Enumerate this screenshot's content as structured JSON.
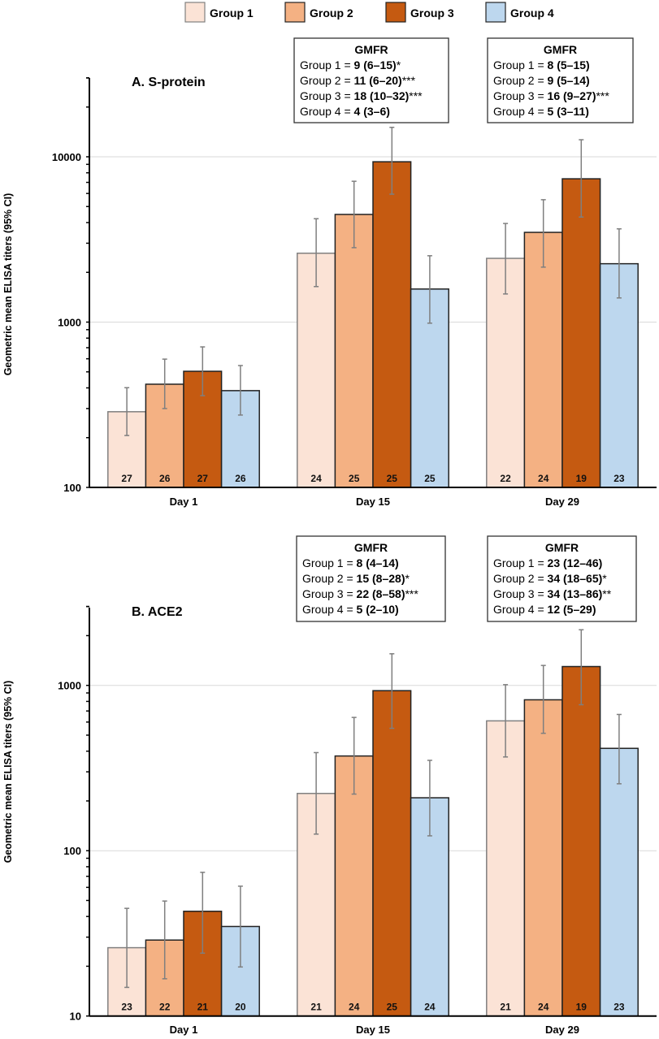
{
  "legend": [
    {
      "name": "Group 1",
      "color": "#fbe3d6",
      "stroke": "#808080"
    },
    {
      "name": "Group 2",
      "color": "#f4b183",
      "stroke": "#222222"
    },
    {
      "name": "Group 3",
      "color": "#c55a11",
      "stroke": "#222222"
    },
    {
      "name": "Group 4",
      "color": "#bdd7ee",
      "stroke": "#222222"
    }
  ],
  "chart_data": [
    {
      "type": "bar",
      "title": "A. S-protein",
      "ylabel": "Geometric mean ELISA titers (95% CI)",
      "yscale": "log",
      "ylim": [
        100,
        30000
      ],
      "yticks": [
        "100",
        "1000",
        "10000"
      ],
      "grid": true,
      "legend_position": "top",
      "categories": [
        "Day 1",
        "Day 15",
        "Day 29"
      ],
      "series": [
        {
          "name": "Group 1",
          "values": [
            287,
            2610,
            2430
          ],
          "ci_low": [
            206,
            1640,
            1480
          ],
          "ci_high": [
            401,
            4220,
            3950
          ],
          "n": [
            "27",
            "24",
            "22"
          ]
        },
        {
          "name": "Group 2",
          "values": [
            421,
            4480,
            3490
          ],
          "ci_low": [
            300,
            2820,
            2150
          ],
          "ci_high": [
            597,
            7110,
            5500
          ],
          "n": [
            "26",
            "25",
            "24"
          ]
        },
        {
          "name": "Group 3",
          "values": [
            504,
            9330,
            7360
          ],
          "ci_low": [
            359,
            5940,
            4320
          ],
          "ci_high": [
            708,
            15070,
            12680
          ],
          "n": [
            "27",
            "25",
            "19"
          ]
        },
        {
          "name": "Group 4",
          "values": [
            385,
            1585,
            2255
          ],
          "ci_low": [
            274,
            985,
            1400
          ],
          "ci_high": [
            546,
            2520,
            3665
          ],
          "n": [
            "26",
            "25",
            "23"
          ]
        }
      ],
      "annotations": [
        {
          "category": "Day 15",
          "heading": "GMFR",
          "lines": [
            {
              "label": "Group 1 = ",
              "value": "9 (6–15)",
              "sig": "*"
            },
            {
              "label": "Group 2 = ",
              "value": "11 (6–20)",
              "sig": "***"
            },
            {
              "label": "Group 3 = ",
              "value": "18 (10–32)",
              "sig": "***"
            },
            {
              "label": "Group 4 = ",
              "value": "4 (3–6)",
              "sig": ""
            }
          ]
        },
        {
          "category": "Day 29",
          "heading": "GMFR",
          "lines": [
            {
              "label": "Group 1 = ",
              "value": "8 (5–15)",
              "sig": ""
            },
            {
              "label": "Group 2 = ",
              "value": "9 (5–14)",
              "sig": ""
            },
            {
              "label": "Group 3 = ",
              "value": "16 (9–27)",
              "sig": "***"
            },
            {
              "label": "Group 4 = ",
              "value": "5 (3–11)",
              "sig": ""
            }
          ]
        }
      ]
    },
    {
      "type": "bar",
      "title": "B. ACE2",
      "ylabel": "Geometric mean ELISA titers (95% CI)",
      "yscale": "log",
      "ylim": [
        10,
        3000
      ],
      "yticks": [
        "10",
        "100",
        "1000"
      ],
      "grid": true,
      "legend_position": "top",
      "categories": [
        "Day 1",
        "Day 15",
        "Day 29"
      ],
      "series": [
        {
          "name": "Group 1",
          "values": [
            25.9,
            222,
            610
          ],
          "ci_low": [
            14.9,
            126,
            369
          ],
          "ci_high": [
            44.8,
            392,
            1010
          ],
          "n": [
            "23",
            "21",
            "21"
          ]
        },
        {
          "name": "Group 2",
          "values": [
            28.8,
            374,
            818
          ],
          "ci_low": [
            16.8,
            220,
            513
          ],
          "ci_high": [
            49.6,
            640,
            1320
          ],
          "n": [
            "22",
            "24",
            "24"
          ]
        },
        {
          "name": "Group 3",
          "values": [
            43,
            929,
            1300
          ],
          "ci_low": [
            24,
            550,
            764
          ],
          "ci_high": [
            74,
            1553,
            2170
          ],
          "n": [
            "21",
            "25",
            "19"
          ]
        },
        {
          "name": "Group 4",
          "values": [
            34.8,
            209,
            416
          ],
          "ci_low": [
            19.8,
            123,
            254
          ],
          "ci_high": [
            61,
            352,
            667
          ],
          "n": [
            "20",
            "24",
            "23"
          ]
        }
      ],
      "annotations": [
        {
          "category": "Day 15",
          "heading": "GMFR",
          "lines": [
            {
              "label": "Group 1 = ",
              "value": "8 (4–14)",
              "sig": ""
            },
            {
              "label": "Group 2 = ",
              "value": "15 (8–28)",
              "sig": "*"
            },
            {
              "label": "Group 3 = ",
              "value": "22 (8–58)",
              "sig": "***"
            },
            {
              "label": "Group 4 = ",
              "value": "5 (2–10)",
              "sig": ""
            }
          ]
        },
        {
          "category": "Day 29",
          "heading": "GMFR",
          "lines": [
            {
              "label": "Group 1 = ",
              "value": "23 (12–46)",
              "sig": ""
            },
            {
              "label": "Group 2 = ",
              "value": "34 (18–65)",
              "sig": "*"
            },
            {
              "label": "Group 3 = ",
              "value": "34 (13–86)",
              "sig": "**"
            },
            {
              "label": "Group 4 = ",
              "value": "12 (5–29)",
              "sig": ""
            }
          ]
        }
      ]
    }
  ]
}
